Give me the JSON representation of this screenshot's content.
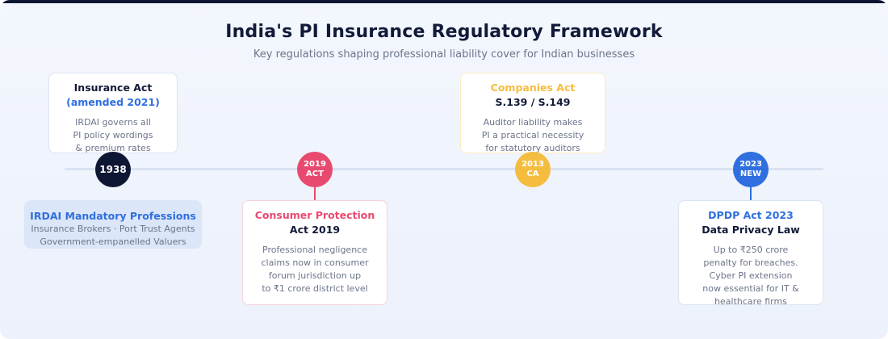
{
  "header": {
    "title": "India's PI Insurance Regulatory Framework",
    "subtitle": "Key regulations shaping professional liability cover for Indian businesses"
  },
  "colors": {
    "navy": "#0d1633",
    "red": "#e84a6f",
    "amber": "#f5bd3f",
    "blue": "#2f6fdf"
  },
  "milestones": [
    {
      "node": "1938",
      "card": {
        "title": "Insurance Act",
        "title2": "(amended 2021)",
        "body": [
          "IRDAI governs all",
          "PI policy wordings",
          "& premium rates"
        ]
      }
    },
    {
      "node": [
        "2019",
        "ACT"
      ],
      "card": {
        "title": "Consumer Protection",
        "title2": "Act 2019",
        "body": [
          "Professional negligence",
          "claims now in consumer",
          "forum jurisdiction up",
          "to ₹1 crore district level"
        ]
      }
    },
    {
      "node": [
        "2013",
        "CA"
      ],
      "card": {
        "title": "Companies Act",
        "title2": "S.139 / S.149",
        "body": [
          "Auditor liability makes",
          "PI a practical necessity",
          "for statutory auditors"
        ]
      }
    },
    {
      "node": [
        "2023",
        "NEW"
      ],
      "card": {
        "title": "DPDP Act 2023",
        "title2": "Data Privacy Law",
        "body": [
          "Up to ₹250 crore",
          "penalty for breaches.",
          "Cyber PI extension",
          "now essential for IT &",
          "healthcare firms"
        ]
      }
    }
  ],
  "mandatory": {
    "title": "IRDAI Mandatory Professions",
    "line1": "Insurance Brokers · Port Trust Agents",
    "line2": "Government-empanelled Valuers"
  }
}
